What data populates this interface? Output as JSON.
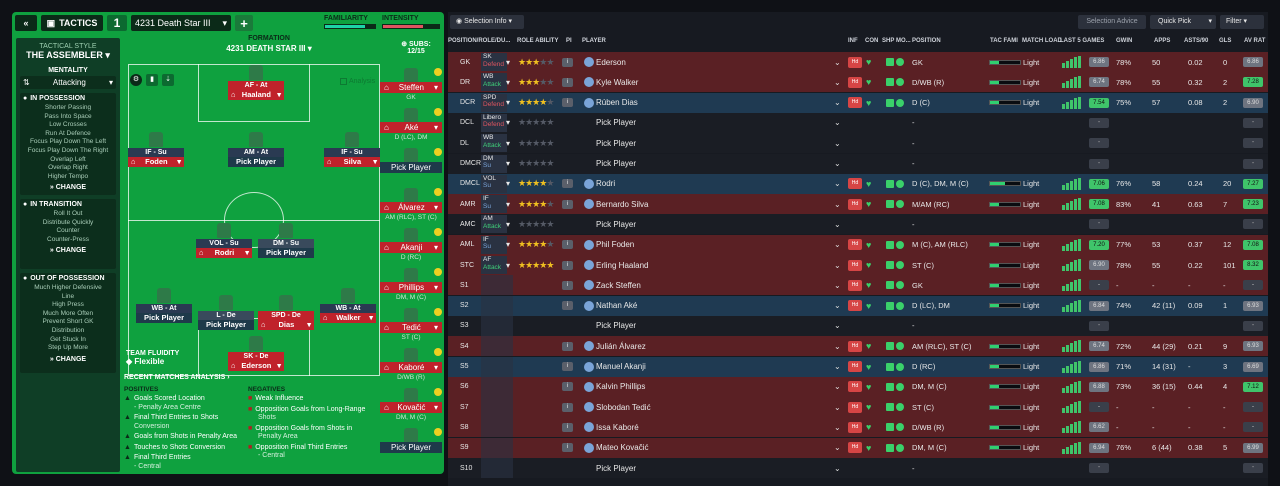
{
  "tactics": {
    "collapse_icon": "double-chevron-left-icon",
    "tab_label": "TACTICS",
    "slot": "1",
    "tactic_name": "4231 Death Star III",
    "add_label": "+",
    "familiarity_label": "FAMILIARITY",
    "intensity_label": "INTENSITY",
    "familiarity_level": 0.8,
    "intensity_level": 0.72
  },
  "side": {
    "tactical_style_label": "TACTICAL STYLE",
    "tactical_style": "THE ASSEMBLER",
    "mentality_label": "MENTALITY",
    "mentality": "Attacking",
    "in_possession": {
      "title": "IN POSSESSION",
      "items": [
        "Shorter Passing",
        "Pass Into Space",
        "Low Crosses",
        "Run At Defence",
        "Focus Play Down The Left",
        "Focus Play Down The Right",
        "Overlap Left",
        "Overlap Right",
        "Higher Tempo"
      ],
      "change": "CHANGE"
    },
    "in_transition": {
      "title": "IN TRANSITION",
      "items": [
        "Roll It Out",
        "Distribute Quickly",
        "Counter",
        "Counter-Press"
      ],
      "change": "CHANGE"
    },
    "out_of_possession": {
      "title": "OUT OF POSSESSION",
      "items": [
        "Much Higher Defensive",
        "Line",
        "High Press",
        "Much More Often",
        "Prevent Short GK",
        "Distribution",
        "Get Stuck In",
        "Step Up More"
      ],
      "change": "CHANGE"
    }
  },
  "formation": {
    "label": "FORMATION",
    "name": "4231 DEATH STAR III",
    "subs_label": "SUBS:",
    "subs_count": "12/15",
    "analysis_label": "Analysis",
    "fluidity_label": "TEAM FLUIDITY",
    "fluidity": "Flexible",
    "players": [
      {
        "role": "AF - At",
        "name": "Haaland",
        "filled": true,
        "color": "red"
      },
      {
        "role": "IF - Su",
        "name": "Foden",
        "filled": true,
        "color": "blue"
      },
      {
        "role": "AM - At",
        "name": "Pick Player",
        "filled": false,
        "color": "blue"
      },
      {
        "role": "IF - Su",
        "name": "Silva",
        "filled": true,
        "color": "blue"
      },
      {
        "role": "VOL - Su",
        "name": "Rodri",
        "filled": true,
        "color": "blue"
      },
      {
        "role": "DM - Su",
        "name": "Pick Player",
        "filled": false,
        "color": "grey"
      },
      {
        "role": "WB - At",
        "name": "Pick Player",
        "filled": false,
        "color": "blue"
      },
      {
        "role": "L - De",
        "name": "Pick Player",
        "filled": false,
        "color": "grey"
      },
      {
        "role": "SPD - De",
        "name": "Dias",
        "filled": true,
        "color": "red"
      },
      {
        "role": "WB - At",
        "name": "Walker",
        "filled": true,
        "color": "blue"
      },
      {
        "role": "SK - De",
        "name": "Ederson",
        "filled": true,
        "color": "red"
      }
    ],
    "subs": [
      {
        "name": "Steffen",
        "pos": "GK"
      },
      {
        "name": "Aké",
        "pos": "D (LC), DM"
      },
      {
        "name": "Pick Player",
        "pos": ""
      },
      {
        "name": "Álvarez",
        "pos": "AM (RLC), ST (C)"
      },
      {
        "name": "Akanji",
        "pos": "D (RC)"
      },
      {
        "name": "Phillips",
        "pos": "DM, M (C)"
      },
      {
        "name": "Tedić",
        "pos": "ST (C)"
      },
      {
        "name": "Kaboré",
        "pos": "D/WB (R)"
      },
      {
        "name": "Kovačić",
        "pos": "DM, M (C)"
      },
      {
        "name": "Pick Player",
        "pos": ""
      }
    ]
  },
  "analysis": {
    "title": "RECENT MATCHES ANALYSIS",
    "positives_label": "POSITIVES",
    "negatives_label": "NEGATIVES",
    "positives": [
      {
        "text": "Goals Scored Location",
        "sub": "- Penalty Area Centre"
      },
      {
        "text": "Final Third Entries to Shots",
        "sub": "Conversion"
      },
      {
        "text": "Goals from Shots in Penalty Area",
        "sub": ""
      },
      {
        "text": "Touches to Shots Conversion",
        "sub": ""
      },
      {
        "text": "Final Third Entries",
        "sub": "- Central"
      }
    ],
    "negatives": [
      {
        "text": "Weak Influence",
        "sub": ""
      },
      {
        "text": "Opposition Goals from Long-Range",
        "sub": "Shots"
      },
      {
        "text": "Opposition Goals from Shots in",
        "sub": "Penalty Area"
      },
      {
        "text": "Opposition Final Third Entries",
        "sub": "- Central"
      }
    ]
  },
  "toolbar": {
    "selection_info": "Selection Info",
    "selection_advice": "Selection Advice",
    "quick_pick": "Quick Pick",
    "filter": "Filter"
  },
  "table": {
    "headers": {
      "position": "POSITION/ROLE/DU...",
      "role_ability": "ROLE ABILITY",
      "pi": "PI",
      "player": "PLAYER",
      "inf": "INF",
      "con": "CON",
      "shp": "SHP",
      "mo": "MO...",
      "pos": "POSITION",
      "tac": "TAC FAMI",
      "load": "MATCH LOAD",
      "last5": "LAST 5 GAMES",
      "gwin": "GWIN",
      "apps": "APPS",
      "asts": "ASTS/90",
      "gls": "GLS",
      "avrat": "AV RAT"
    },
    "rows": [
      {
        "slot": "GK",
        "role": "SK",
        "duty": "Defend",
        "stars": 3,
        "player": "Ederson",
        "position": "GK",
        "tac": 0.3,
        "load": "Light",
        "rating": "6.86",
        "gwin": "78%",
        "apps": "50",
        "asts": "0.02",
        "gls": "0",
        "avr": "6.86",
        "row": "red"
      },
      {
        "slot": "DR",
        "role": "WB",
        "duty": "Attack",
        "stars": 3,
        "player": "Kyle Walker",
        "position": "D/WB (R)",
        "tac": 0.3,
        "load": "Light",
        "rating": "6.74",
        "gwin": "78%",
        "apps": "55",
        "asts": "0.32",
        "gls": "2",
        "avr": "7.28",
        "row": "red"
      },
      {
        "slot": "DCR",
        "role": "SPD",
        "duty": "Defend",
        "stars": 4,
        "player": "Rúben Dias",
        "position": "D (C)",
        "tac": 0.3,
        "load": "Light",
        "rating": "7.54",
        "gwin": "75%",
        "apps": "57",
        "asts": "0.08",
        "gls": "2",
        "avr": "6.90",
        "row": "blue"
      },
      {
        "slot": "DCL",
        "role": "Libero",
        "duty": "Defend",
        "stars": 0,
        "player": "Pick Player",
        "position": "-",
        "row": "dark"
      },
      {
        "slot": "DL",
        "role": "WB",
        "duty": "Attack",
        "stars": 0,
        "player": "Pick Player",
        "position": "-",
        "row": "dark"
      },
      {
        "slot": "DMCR",
        "role": "DM",
        "duty": "Su",
        "stars": 0,
        "player": "Pick Player",
        "position": "-",
        "row": "dark"
      },
      {
        "slot": "DMCL",
        "role": "VOL",
        "duty": "Su",
        "stars": 4,
        "player": "Rodri",
        "position": "D (C), DM, M (C)",
        "tac": 0.5,
        "load": "Light",
        "rating": "7.06",
        "gwin": "76%",
        "apps": "58",
        "asts": "0.24",
        "gls": "20",
        "avr": "7.27",
        "row": "blue"
      },
      {
        "slot": "AMR",
        "role": "IF",
        "duty": "Su",
        "stars": 4,
        "player": "Bernardo Silva",
        "position": "M/AM (RC)",
        "tac": 0.3,
        "load": "Light",
        "rating": "7.08",
        "gwin": "83%",
        "apps": "41",
        "asts": "0.63",
        "gls": "7",
        "avr": "7.23",
        "row": "red"
      },
      {
        "slot": "AMC",
        "role": "AM",
        "duty": "Attack",
        "stars": 0,
        "player": "Pick Player",
        "position": "-",
        "row": "dark"
      },
      {
        "slot": "AML",
        "role": "IF",
        "duty": "Su",
        "stars": 4,
        "player": "Phil Foden",
        "position": "M (C), AM (RLC)",
        "tac": 0.3,
        "load": "Light",
        "rating": "7.20",
        "gwin": "77%",
        "apps": "53",
        "asts": "0.37",
        "gls": "12",
        "avr": "7.08",
        "row": "red"
      },
      {
        "slot": "STC",
        "role": "AF",
        "duty": "Attack",
        "stars": 5,
        "player": "Erling Haaland",
        "position": "ST (C)",
        "tac": 0.3,
        "load": "Light",
        "rating": "6.90",
        "gwin": "78%",
        "apps": "55",
        "asts": "0.22",
        "gls": "101",
        "avr": "8.32",
        "row": "red"
      },
      {
        "slot": "S1",
        "role": "",
        "duty": "",
        "stars": -1,
        "player": "Zack Steffen",
        "position": "GK",
        "tac": 0.3,
        "load": "Light",
        "rating": "-",
        "gwin": "-",
        "apps": "-",
        "asts": "-",
        "gls": "-",
        "avr": "-",
        "row": "red"
      },
      {
        "slot": "S2",
        "role": "",
        "duty": "",
        "stars": -1,
        "player": "Nathan Aké",
        "position": "D (LC), DM",
        "tac": 0.3,
        "load": "Light",
        "rating": "6.84",
        "gwin": "74%",
        "apps": "42 (11)",
        "asts": "0.09",
        "gls": "1",
        "avr": "6.93",
        "row": "blue"
      },
      {
        "slot": "S3",
        "role": "",
        "duty": "",
        "stars": -1,
        "player": "Pick Player",
        "position": "-",
        "row": "dark"
      },
      {
        "slot": "S4",
        "role": "",
        "duty": "",
        "stars": -1,
        "player": "Julián Álvarez",
        "position": "AM (RLC), ST (C)",
        "tac": 0.3,
        "load": "Light",
        "rating": "6.74",
        "gwin": "72%",
        "apps": "44 (29)",
        "asts": "0.21",
        "gls": "9",
        "avr": "6.93",
        "row": "red"
      },
      {
        "slot": "S5",
        "role": "",
        "duty": "",
        "stars": -1,
        "player": "Manuel Akanji",
        "position": "D (RC)",
        "tac": 0.3,
        "load": "Light",
        "rating": "6.86",
        "gwin": "71%",
        "apps": "14 (31)",
        "asts": "-",
        "gls": "3",
        "avr": "6.69",
        "row": "blue"
      },
      {
        "slot": "S6",
        "role": "",
        "duty": "",
        "stars": -1,
        "player": "Kalvin Phillips",
        "position": "DM, M (C)",
        "tac": 0.3,
        "load": "Light",
        "rating": "6.88",
        "gwin": "73%",
        "apps": "36 (15)",
        "asts": "0.44",
        "gls": "4",
        "avr": "7.12",
        "row": "red"
      },
      {
        "slot": "S7",
        "role": "",
        "duty": "",
        "stars": -1,
        "player": "Slobodan Tedić",
        "position": "ST (C)",
        "tac": 0.3,
        "load": "Light",
        "rating": "-",
        "gwin": "-",
        "apps": "-",
        "asts": "-",
        "gls": "-",
        "avr": "-",
        "row": "red"
      },
      {
        "slot": "S8",
        "role": "",
        "duty": "",
        "stars": -1,
        "player": "Issa Kaboré",
        "position": "D/WB (R)",
        "tac": 0.3,
        "load": "Light",
        "rating": "6.62",
        "gwin": "-",
        "apps": "-",
        "asts": "-",
        "gls": "-",
        "avr": "-",
        "row": "red"
      },
      {
        "slot": "S9",
        "role": "",
        "duty": "",
        "stars": -1,
        "player": "Mateo Kovačić",
        "position": "DM, M (C)",
        "tac": 0.3,
        "load": "Light",
        "rating": "6.94",
        "gwin": "76%",
        "apps": "6 (44)",
        "asts": "0.38",
        "gls": "5",
        "avr": "6.99",
        "row": "red"
      },
      {
        "slot": "S10",
        "role": "",
        "duty": "",
        "stars": -1,
        "player": "Pick Player",
        "position": "-",
        "row": "dark"
      }
    ]
  },
  "colors": {
    "pitch": "#0fa13f",
    "dark_panel": "#0f3e26",
    "red_row": "#5a2024",
    "blue_row": "#1f3a52",
    "star": "#f0c020",
    "green_rating": "#3fc46a"
  }
}
